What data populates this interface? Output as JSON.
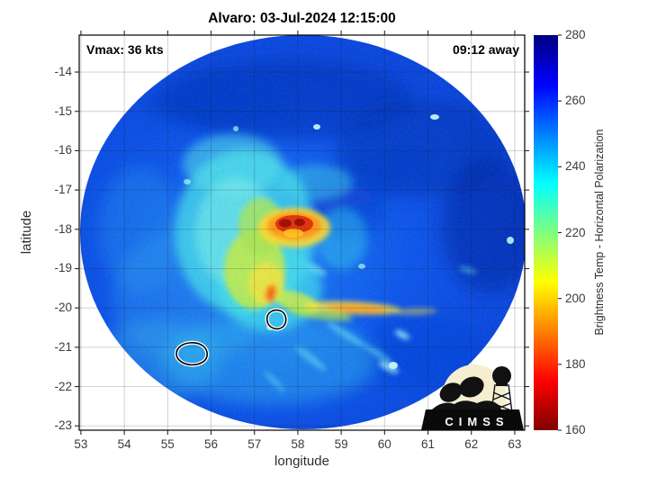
{
  "header": {
    "title": "Alvaro: 03-Jul-2024 12:15:00"
  },
  "annotations": {
    "vmax": "Vmax: 36 kts",
    "time_away": "09:12 away"
  },
  "axes": {
    "x": {
      "label": "longitude",
      "ticks": [
        53,
        54,
        55,
        56,
        57,
        58,
        59,
        60,
        61,
        62,
        63
      ]
    },
    "y": {
      "label": "latitude",
      "ticks": [
        -14,
        -15,
        -16,
        -17,
        -18,
        -19,
        -20,
        -21,
        -22,
        -23
      ]
    }
  },
  "colorbar": {
    "label": "Brightness Temp - Horizontal Polarization",
    "ticks": [
      280,
      260,
      240,
      220,
      200,
      180,
      160
    ],
    "stops": [
      {
        "value": 280,
        "color": "#000080"
      },
      {
        "value": 265,
        "color": "#0000ff"
      },
      {
        "value": 235,
        "color": "#00ffff"
      },
      {
        "value": 205,
        "color": "#ffff00"
      },
      {
        "value": 175,
        "color": "#ff0000"
      },
      {
        "value": 160,
        "color": "#800000"
      }
    ]
  },
  "logo": {
    "text": "CIMSS"
  },
  "storm": {
    "name": "Alvaro",
    "datetime": "03-Jul-2024 12:15:00",
    "vmax_kts": 36,
    "time_away": "09:12"
  },
  "chart_data": {
    "type": "heatmap",
    "title": "Alvaro: 03-Jul-2024 12:15:00",
    "xlabel": "longitude",
    "ylabel": "latitude",
    "xlim": [
      52.96,
      63.23
    ],
    "ylim": [
      -23.11,
      -13.06
    ],
    "xticks": [
      53,
      54,
      55,
      56,
      57,
      58,
      59,
      60,
      61,
      62,
      63
    ],
    "yticks": [
      -14,
      -15,
      -16,
      -17,
      -18,
      -19,
      -20,
      -21,
      -22,
      -23
    ],
    "grid": true,
    "legend": "none",
    "colorbar_label": "Brightness Temp - Horizontal Polarization",
    "colorbar_range": [
      160,
      280
    ],
    "colorbar_ticks": [
      160,
      180,
      200,
      220,
      240,
      260,
      280
    ],
    "colormap": "reversed jet (160 K dark red -> 280 K dark navy)",
    "swath": {
      "shape": "circular microwave swath",
      "center_lon": 58.1,
      "center_lat": -18.1,
      "radius_deg": 5.1
    },
    "features": {
      "core_min_temp_K": 163,
      "core_location": [
        57.97,
        -17.95
      ],
      "core_description": "small dark-red crescent of deep convection (~160-175 K) ringed by orange/yellow ~190-210 K",
      "comma_tail": "yellow-green band (~210-225 K) curving south from core to ~-20.3 lat then east along -20.3 as a yellow/orange band reaching ~61E",
      "moat": "cyan region (~235-245 K) surrounding core on W and S sides",
      "background_ocean_temp_K": [
        248,
        263
      ],
      "cold_streaks": "diagonal cyan rain streaks (~240 K) in SE quadrant",
      "center_candidate_contours": [
        [
          57.52,
          -20.27
        ],
        [
          55.58,
          -21.17
        ]
      ]
    }
  }
}
